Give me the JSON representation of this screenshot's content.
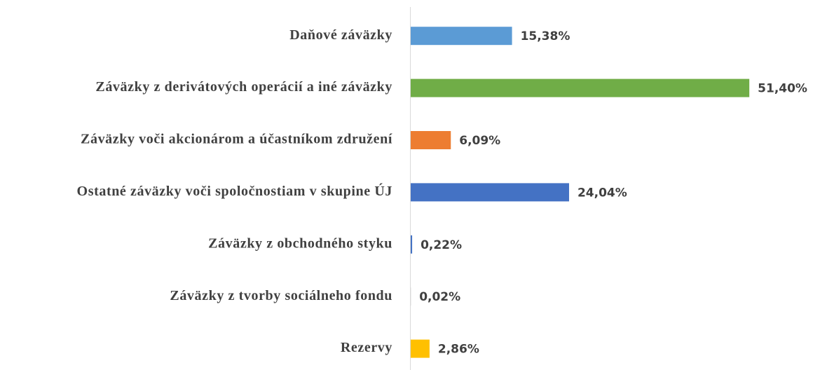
{
  "chart_data": {
    "type": "barh",
    "categories": [
      "Daňové záväzky",
      "Záväzky z derivátových operácií a iné záväzky",
      "Záväzky voči akcionárom a účastníkom združení",
      "Ostatné záväzky voči spoločnostiam v skupine ÚJ",
      "Záväzky z obchodného styku",
      "Záväzky z tvorby sociálneho fondu",
      "Rezervy"
    ],
    "values": [
      15.38,
      51.4,
      6.09,
      24.04,
      0.22,
      0.02,
      2.86
    ],
    "value_labels": [
      "15,38%",
      "51,40%",
      "6,09%",
      "24,04%",
      "0,22%",
      "0,02%",
      "2,86%"
    ],
    "colors": [
      "#5b9bd5",
      "#70ad47",
      "#ed7d31",
      "#4472c4",
      "#4472c4",
      "#a5a5a5",
      "#ffc000"
    ]
  }
}
